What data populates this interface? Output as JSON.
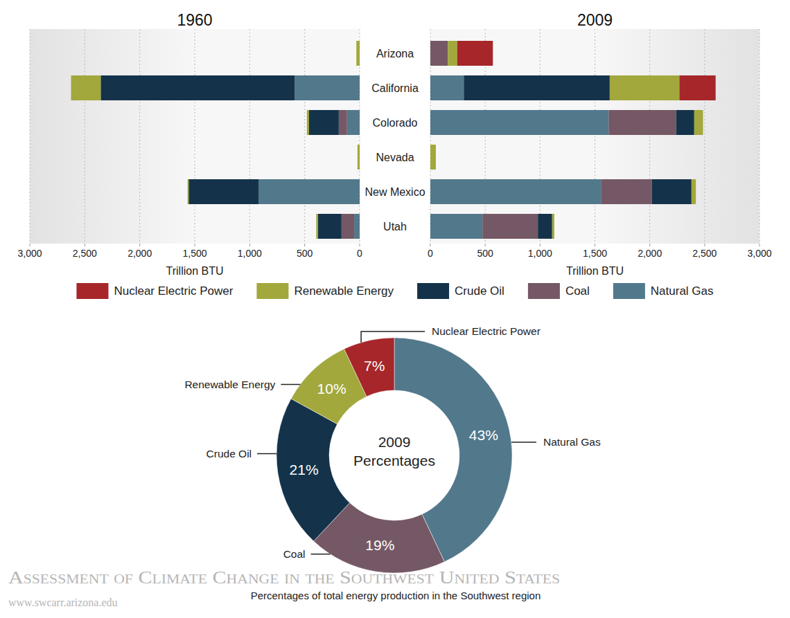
{
  "chart_data": [
    {
      "type": "bar",
      "orientation": "horizontal",
      "stacked": true,
      "grid": true,
      "title": "1960",
      "xlabel": "Trillion BTU",
      "categories": [
        "Arizona",
        "California",
        "Colorado",
        "Nevada",
        "New Mexico",
        "Utah"
      ],
      "xlim": [
        3000,
        0
      ],
      "xticks": [
        {
          "value": 3000,
          "label": "3,000"
        },
        {
          "value": 2500,
          "label": "2,500"
        },
        {
          "value": 2000,
          "label": "2,000"
        },
        {
          "value": 1500,
          "label": "1,500"
        },
        {
          "value": 1000,
          "label": "1,000"
        },
        500,
        0
      ],
      "series": [
        {
          "name": "Natural Gas",
          "color": "#52788c",
          "values": [
            0,
            590,
            115,
            0,
            920,
            50
          ]
        },
        {
          "name": "Coal",
          "color": "#755865",
          "values": [
            0,
            0,
            75,
            0,
            0,
            115
          ]
        },
        {
          "name": "Crude Oil",
          "color": "#14334a",
          "values": [
            0,
            1765,
            270,
            0,
            635,
            215
          ]
        },
        {
          "name": "Renewable Energy",
          "color": "#a2a83c",
          "values": [
            30,
            270,
            20,
            20,
            10,
            15
          ]
        },
        {
          "name": "Nuclear Electric Power",
          "color": "#a6262a",
          "values": [
            0,
            0,
            0,
            0,
            0,
            0
          ]
        }
      ]
    },
    {
      "type": "bar",
      "orientation": "horizontal",
      "stacked": true,
      "grid": true,
      "legend": "bottom",
      "title": "2009",
      "xlabel": "Trillion BTU",
      "categories": [
        "Arizona",
        "California",
        "Colorado",
        "Nevada",
        "New Mexico",
        "Utah"
      ],
      "xlim": [
        0,
        3000
      ],
      "xticks": [
        0,
        500,
        {
          "value": 1000,
          "label": "1,000"
        },
        {
          "value": 1500,
          "label": "1,500"
        },
        {
          "value": 2000,
          "label": "2,000"
        },
        {
          "value": 2500,
          "label": "2,500"
        },
        {
          "value": 3000,
          "label": "3,000"
        }
      ],
      "series": [
        {
          "name": "Natural Gas",
          "color": "#52788c",
          "values": [
            0,
            305,
            1625,
            0,
            1555,
            475
          ]
        },
        {
          "name": "Coal",
          "color": "#755865",
          "values": [
            160,
            0,
            615,
            0,
            465,
            505
          ]
        },
        {
          "name": "Crude Oil",
          "color": "#14334a",
          "values": [
            0,
            1330,
            165,
            0,
            360,
            130
          ]
        },
        {
          "name": "Renewable Energy",
          "color": "#a2a83c",
          "values": [
            85,
            635,
            80,
            50,
            40,
            20
          ]
        },
        {
          "name": "Nuclear Electric Power",
          "color": "#a6262a",
          "values": [
            325,
            330,
            0,
            0,
            0,
            0
          ]
        }
      ]
    },
    {
      "type": "donut",
      "title": "2009 Percentages",
      "subtitle": "Percentages of total energy production in the Southwest region",
      "categories": [
        "Natural Gas",
        "Coal",
        "Crude Oil",
        "Renewable Energy",
        "Nuclear Electric Power"
      ],
      "values": [
        43,
        19,
        21,
        10,
        7
      ],
      "value_labels": [
        "43%",
        "19%",
        "21%",
        "10%",
        "7%"
      ],
      "colors": [
        "#52788c",
        "#755865",
        "#14334a",
        "#a2a83c",
        "#a6262a"
      ],
      "data_labels": true
    }
  ],
  "footer": {
    "title": "Assessment of Climate Change in the Southwest United States",
    "url": "www.swcarr.arizona.edu"
  }
}
